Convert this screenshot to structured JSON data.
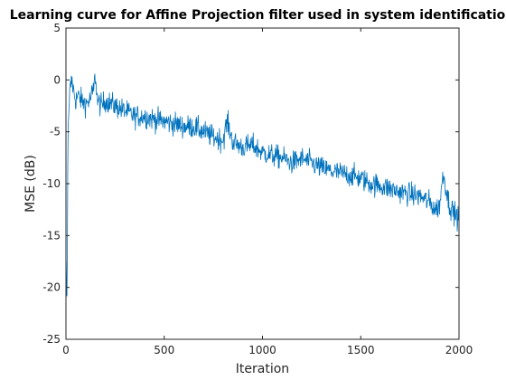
{
  "chart_data": {
    "type": "line",
    "title": "Learning curve for Affine Projection filter used in system identification",
    "xlabel": "Iteration",
    "ylabel": "MSE (dB)",
    "xlim": [
      0,
      2000
    ],
    "ylim": [
      -25,
      5
    ],
    "xticks": [
      0,
      500,
      1000,
      1500,
      2000
    ],
    "yticks": [
      5,
      0,
      -5,
      -10,
      -15,
      -20,
      -25
    ],
    "xtick_labels": [
      "0",
      "500",
      "1000",
      "1500",
      "2000"
    ],
    "ytick_labels": [
      "5",
      "0",
      "-5",
      "-10",
      "-15",
      "-20",
      "-25"
    ],
    "grid": false,
    "legend": "none",
    "series": [
      {
        "color": "#0072bd",
        "x": [
          1,
          3,
          6,
          10,
          15,
          20,
          30,
          40,
          50,
          60,
          80,
          100,
          120,
          140,
          150,
          160,
          180,
          200,
          250,
          300,
          350,
          400,
          450,
          500,
          550,
          600,
          650,
          700,
          750,
          800,
          820,
          850,
          900,
          950,
          1000,
          1050,
          1100,
          1150,
          1200,
          1250,
          1300,
          1350,
          1400,
          1450,
          1500,
          1550,
          1600,
          1650,
          1700,
          1750,
          1800,
          1850,
          1880,
          1900,
          1920,
          1950,
          2000
        ],
        "y": [
          -17.5,
          -20.5,
          -21.0,
          -5.0,
          -3.0,
          -1.0,
          0.0,
          -1.2,
          -2.0,
          -1.5,
          -2.0,
          -2.3,
          -2.0,
          -1.0,
          0.5,
          -2.0,
          -2.5,
          -2.0,
          -2.5,
          -3.0,
          -3.5,
          -3.5,
          -3.8,
          -4.0,
          -4.2,
          -4.5,
          -4.5,
          -5.0,
          -5.5,
          -5.8,
          -4.0,
          -6.0,
          -6.5,
          -6.3,
          -7.0,
          -7.3,
          -7.5,
          -8.0,
          -7.6,
          -8.0,
          -8.5,
          -8.8,
          -9.0,
          -9.2,
          -9.5,
          -10.0,
          -10.2,
          -10.5,
          -10.8,
          -11.0,
          -11.2,
          -11.8,
          -12.5,
          -12.2,
          -9.0,
          -12.0,
          -13.5
        ]
      }
    ]
  }
}
